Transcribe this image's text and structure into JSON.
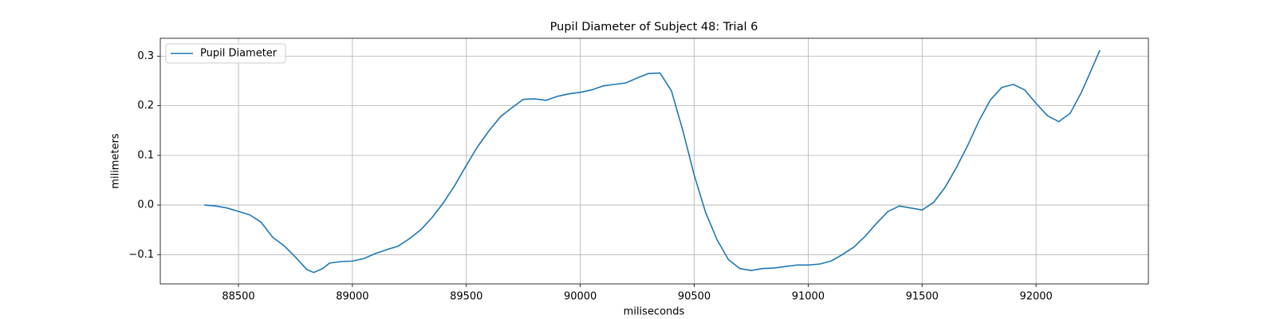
{
  "chart_data": {
    "type": "line",
    "title": "Pupil Diameter of Subject 48: Trial 6",
    "xlabel": "miliseconds",
    "ylabel": "milimeters",
    "x": [
      88350,
      88400,
      88450,
      88500,
      88550,
      88600,
      88650,
      88700,
      88750,
      88800,
      88830,
      88870,
      88900,
      88950,
      89000,
      89050,
      89100,
      89150,
      89200,
      89250,
      89300,
      89350,
      89400,
      89450,
      89500,
      89550,
      89600,
      89650,
      89700,
      89750,
      89800,
      89850,
      89900,
      89950,
      90000,
      90050,
      90100,
      90150,
      90200,
      90250,
      90300,
      90350,
      90400,
      90450,
      90500,
      90550,
      90600,
      90650,
      90700,
      90750,
      90800,
      90850,
      90900,
      90950,
      91000,
      91050,
      91100,
      91150,
      91200,
      91250,
      91300,
      91350,
      91400,
      91450,
      91500,
      91550,
      91600,
      91650,
      91700,
      91750,
      91800,
      91850,
      91900,
      91950,
      92000,
      92050,
      92100,
      92150,
      92200,
      92250,
      92280
    ],
    "series": [
      {
        "name": "Pupil Diameter",
        "color": "#1f77b4",
        "values": [
          0,
          -0.002,
          -0.006,
          -0.013,
          -0.02,
          -0.035,
          -0.065,
          -0.082,
          -0.105,
          -0.13,
          -0.136,
          -0.128,
          -0.117,
          -0.114,
          -0.113,
          -0.108,
          -0.098,
          -0.09,
          -0.083,
          -0.068,
          -0.05,
          -0.025,
          0.005,
          0.04,
          0.08,
          0.118,
          0.15,
          0.178,
          0.196,
          0.213,
          0.214,
          0.211,
          0.219,
          0.224,
          0.227,
          0.232,
          0.24,
          0.243,
          0.246,
          0.256,
          0.265,
          0.266,
          0.23,
          0.15,
          0.06,
          -0.015,
          -0.07,
          -0.11,
          -0.128,
          -0.132,
          -0.128,
          -0.127,
          -0.124,
          -0.121,
          -0.121,
          -0.119,
          -0.113,
          -0.1,
          -0.085,
          -0.063,
          -0.037,
          -0.013,
          -0.002,
          -0.006,
          -0.01,
          0.005,
          0.035,
          0.075,
          0.12,
          0.17,
          0.212,
          0.237,
          0.243,
          0.232,
          0.205,
          0.18,
          0.168,
          0.185,
          0.228,
          0.28,
          0.312
        ]
      }
    ],
    "xlim": [
      88157,
      92493
    ],
    "xticks": [
      88500,
      89000,
      89500,
      90000,
      90500,
      91000,
      91500,
      92000
    ],
    "ylim": [
      -0.159,
      0.336
    ],
    "yticks": [
      {
        "value": -0.1,
        "label": "−0.1"
      },
      {
        "value": 0,
        "label": "0.0"
      },
      0.1,
      0.2,
      0.3
    ],
    "grid": true,
    "legend": "upper left"
  }
}
